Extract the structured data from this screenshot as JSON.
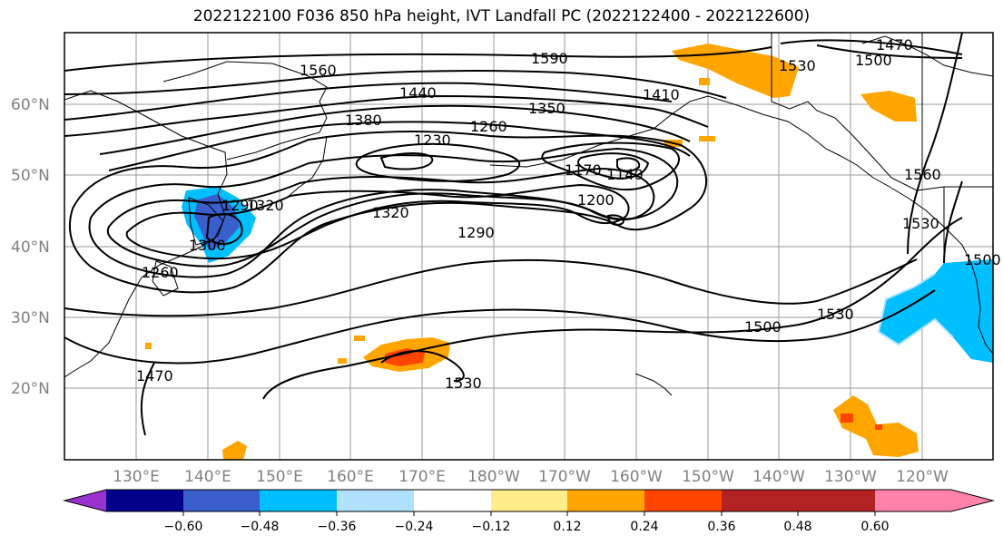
{
  "title": "2022122100 F036 850 hPa height, IVT Landfall PC (2022122400 - 2022122600)",
  "map": {
    "lon_labels": [
      "130°E",
      "140°E",
      "150°E",
      "160°E",
      "170°E",
      "180°W",
      "170°W",
      "160°W",
      "150°W",
      "140°W",
      "130°W",
      "120°W"
    ],
    "lat_labels": [
      "60°N",
      "50°N",
      "40°N",
      "30°N",
      "20°N"
    ],
    "grid": true,
    "contour_labels": [
      "1560",
      "1590",
      "1470",
      "1500",
      "1530",
      "1440",
      "1410",
      "1350",
      "1380",
      "1260",
      "1230",
      "1170",
      "1140",
      "1200",
      "1320",
      "1290",
      "1320",
      "1290",
      "1260",
      "1300",
      "1500",
      "1530",
      "1560",
      "1530",
      "1500",
      "1470",
      "1530"
    ]
  },
  "colorbar": {
    "tick_labels": [
      "−0.60",
      "−0.48",
      "−0.36",
      "−0.24",
      "−0.12",
      "0.12",
      "0.24",
      "0.36",
      "0.48",
      "0.60"
    ],
    "colors": [
      "#9932cc",
      "#00008b",
      "#3a5fcd",
      "#00bfff",
      "#b0e2ff",
      "#ffffff",
      "#ffec8b",
      "#ffa500",
      "#ff4500",
      "#b22222",
      "#ff82ab"
    ]
  },
  "shading": {
    "positive_colors": [
      "#ffec8b",
      "#ffa500",
      "#ff4500"
    ],
    "negative_colors": [
      "#b0e2ff",
      "#00bfff",
      "#3a5fcd"
    ]
  }
}
